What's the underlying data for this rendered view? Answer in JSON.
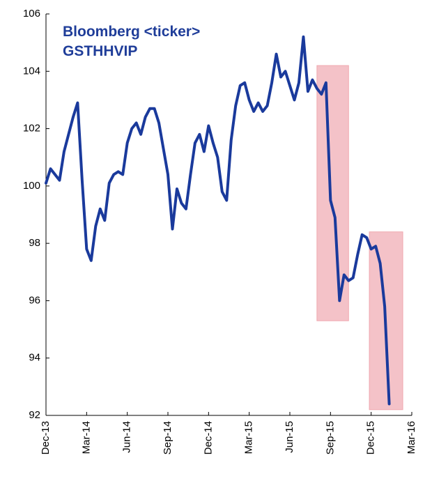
{
  "chart_data": {
    "type": "line",
    "title": "Bloomberg <ticker>",
    "subtitle": "GSTHHVIP",
    "categories": [
      "Dec-13",
      null,
      null,
      null,
      null,
      null,
      null,
      null,
      null,
      "Mar-14",
      null,
      null,
      null,
      null,
      null,
      null,
      null,
      null,
      "Jun-14",
      null,
      null,
      null,
      null,
      null,
      null,
      null,
      null,
      "Sep-14",
      null,
      null,
      null,
      null,
      null,
      null,
      null,
      null,
      "Dec-14",
      null,
      null,
      null,
      null,
      null,
      null,
      null,
      null,
      "Mar-15",
      null,
      null,
      null,
      null,
      null,
      null,
      null,
      null,
      "Jun-15",
      null,
      null,
      null,
      null,
      null,
      null,
      null,
      null,
      "Sep-15",
      null,
      null,
      null,
      null,
      null,
      null,
      null,
      null,
      "Dec-15",
      null,
      null,
      null,
      null,
      null,
      null,
      null,
      null,
      "Mar-16"
    ],
    "series": [
      {
        "name": "GSTHHVIP",
        "color": "#1a3a9c",
        "values": [
          100.1,
          100.6,
          100.4,
          100.2,
          101.2,
          101.8,
          102.4,
          102.9,
          100.2,
          97.8,
          97.4,
          98.6,
          99.2,
          98.8,
          100.1,
          100.4,
          100.5,
          100.4,
          101.5,
          102,
          102.2,
          101.8,
          102.4,
          102.7,
          102.7,
          102.2,
          101.3,
          100.4,
          98.5,
          99.9,
          99.4,
          99.2,
          100.4,
          101.5,
          101.8,
          101.2,
          102.1,
          101.5,
          101,
          99.8,
          99.5,
          101.6,
          102.8,
          103.5,
          103.6,
          103,
          102.6,
          102.9,
          102.6,
          102.8,
          103.6,
          104.6,
          103.8,
          104,
          103.5,
          103,
          103.6,
          105.2,
          103.3,
          103.7,
          103.4,
          103.2,
          103.6,
          99.5,
          98.9,
          96,
          96.9,
          96.7,
          96.8,
          97.6,
          98.3,
          98.2,
          97.8,
          97.9,
          97.3,
          95.8,
          92.4,
          null,
          null,
          null,
          null,
          null
        ]
      }
    ],
    "highlights": [
      {
        "start": 60,
        "end": 67,
        "low": 95.3,
        "high": 104.2,
        "color": "#f4c2c8"
      },
      {
        "start": 71.6,
        "end": 79,
        "low": 92.2,
        "high": 98.4,
        "color": "#f4c2c8"
      }
    ],
    "ylim": [
      92,
      106
    ],
    "yticks": [
      92,
      94,
      96,
      98,
      100,
      102,
      104,
      106
    ]
  }
}
